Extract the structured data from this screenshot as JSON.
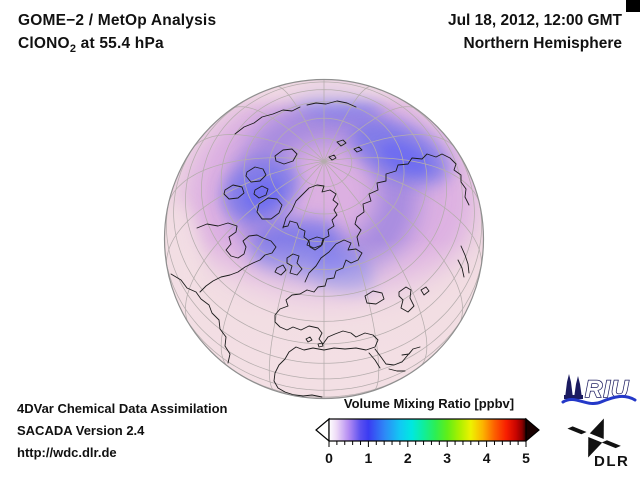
{
  "header": {
    "product": "GOME−2 / MetOp Analysis",
    "species": "ClONO",
    "species_subscript": "2",
    "level_text": " at 55.4 hPa",
    "datetime": "Jul 18, 2012, 12:00 GMT",
    "region": "Northern Hemisphere"
  },
  "footer": {
    "line1": "4DVar Chemical Data Assimilation",
    "line2": "SACADA Version 2.4",
    "line3": "http://wdc.dlr.de"
  },
  "logos": {
    "riu_text": "RIU",
    "dlr_text": "DLR"
  },
  "globe": {
    "projection": "orthographic, Northern Hemisphere, pole near upper center",
    "colors": {
      "base": "#f1dce1",
      "haze_magenta": "#d9a9e2",
      "band_purple": "#a288e0",
      "patch_blue": "#7b79ea",
      "patch_blue_deep": "#6c6bf2",
      "pale_south": "#f3dfe4",
      "graticule": "#b5adad",
      "coastline": "#1c1c1c",
      "limb": "#8f8f8f"
    }
  },
  "chart_data": {
    "type": "heatmap",
    "title": "ClONO2 volume mixing ratio at 55.4 hPa over the Northern Hemisphere (orthographic globe, Jul 18 2012 12:00 GMT)",
    "legend_position": "bottom-right",
    "colorbar": {
      "label": "Volume Mixing Ratio [ppbv]",
      "range": [
        0,
        5
      ],
      "ticks": [
        0,
        1,
        2,
        3,
        4,
        5
      ],
      "minor_step": 0.2,
      "under_color": "#ffffff",
      "over_color": "#1a0000",
      "stops": [
        {
          "value": 0.0,
          "color": "#ffffff"
        },
        {
          "value": 0.2,
          "color": "#ecd8f6"
        },
        {
          "value": 0.5,
          "color": "#b48cf2"
        },
        {
          "value": 0.8,
          "color": "#5a50f0"
        },
        {
          "value": 1.0,
          "color": "#3a3cf2"
        },
        {
          "value": 1.4,
          "color": "#2e86f6"
        },
        {
          "value": 1.8,
          "color": "#12c8f4"
        },
        {
          "value": 2.1,
          "color": "#00e8e0"
        },
        {
          "value": 2.4,
          "color": "#10ee9c"
        },
        {
          "value": 2.7,
          "color": "#2cee54"
        },
        {
          "value": 3.0,
          "color": "#60ee18"
        },
        {
          "value": 3.3,
          "color": "#a8f000"
        },
        {
          "value": 3.6,
          "color": "#eef200"
        },
        {
          "value": 3.9,
          "color": "#fcb400"
        },
        {
          "value": 4.2,
          "color": "#fc6000"
        },
        {
          "value": 4.5,
          "color": "#f81e00"
        },
        {
          "value": 4.75,
          "color": "#c80400"
        },
        {
          "value": 4.9,
          "color": "#8c0000"
        },
        {
          "value": 5.0,
          "color": "#300000"
        }
      ]
    },
    "observed_field": {
      "units": "ppbv",
      "approx_midlatitude_background": 0.3,
      "approx_polar_band_range": [
        0.8,
        1.6
      ],
      "pattern": "blue-purple ClONO2 maximum ring around the Arctic (strongest over Siberia, Canadian Arctic and Scandinavia), fading through magenta to pale pink toward low latitudes"
    }
  }
}
